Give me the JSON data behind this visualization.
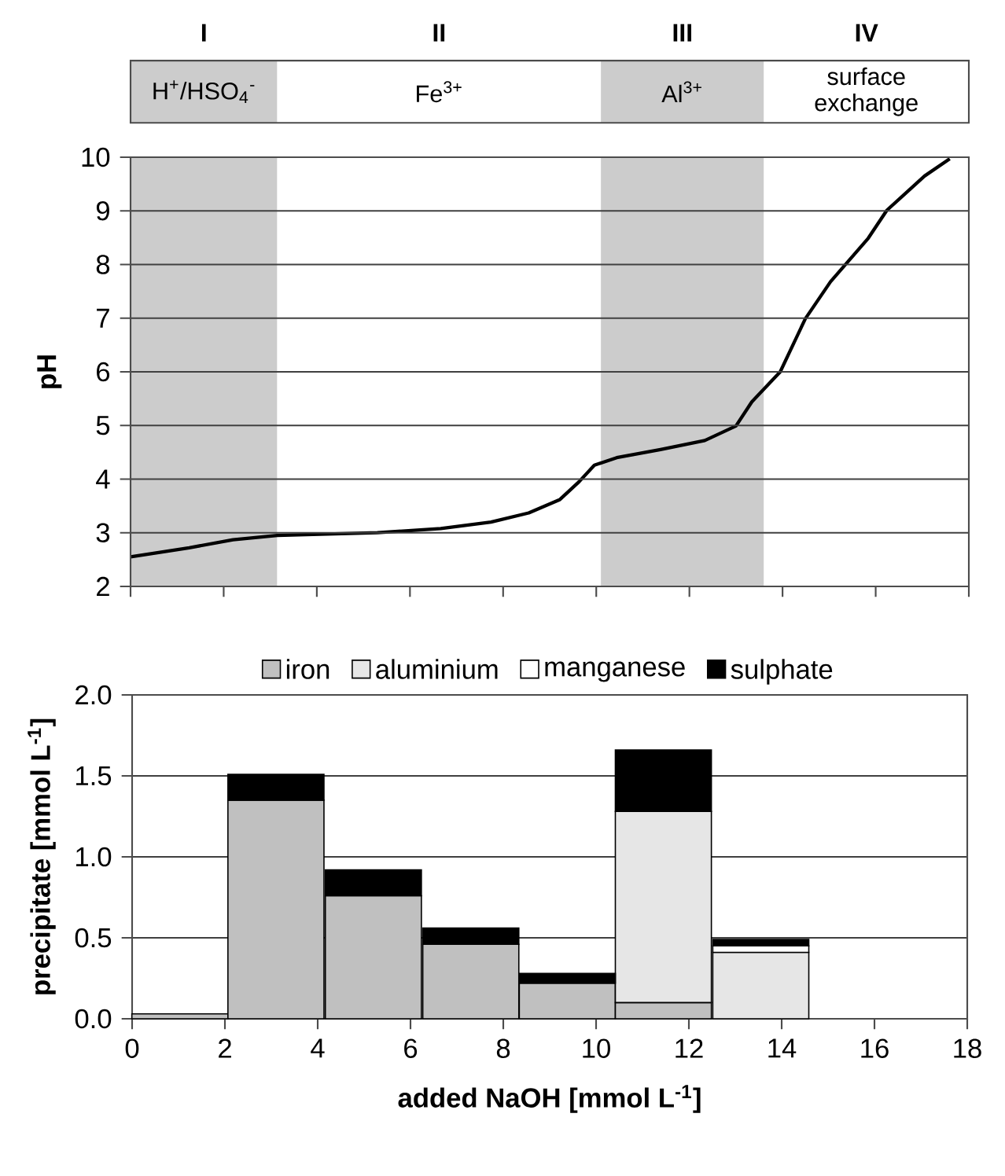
{
  "chart_data": [
    {
      "type": "line",
      "ylabel": "pH",
      "x": [
        0,
        1.26,
        2.2,
        3.15,
        5.3,
        6.66,
        7.74,
        8.55,
        9.22,
        9.63,
        9.96,
        10.44,
        11.38,
        12.33,
        13.0,
        13.34,
        13.95,
        14.49,
        15.03,
        15.84,
        16.24,
        17.05,
        17.59
      ],
      "values": [
        2.55,
        2.72,
        2.87,
        2.95,
        3.0,
        3.08,
        3.2,
        3.37,
        3.62,
        3.95,
        4.26,
        4.4,
        4.55,
        4.72,
        4.99,
        5.44,
        6.0,
        6.99,
        7.68,
        8.49,
        9.01,
        9.65,
        9.97
      ],
      "color": "#000000",
      "xlim": [
        0,
        18
      ],
      "xticks": [
        {
          "value": 0,
          "label": null
        },
        {
          "value": 2,
          "label": null
        },
        {
          "value": 4,
          "label": null
        },
        {
          "value": 6,
          "label": null
        },
        {
          "value": 8,
          "label": null
        },
        {
          "value": 10,
          "label": null
        },
        {
          "value": 12,
          "label": null
        },
        {
          "value": 14,
          "label": null
        },
        {
          "value": 16,
          "label": null
        },
        {
          "value": 18,
          "label": null
        }
      ],
      "ylim": [
        2,
        10
      ],
      "yticks": [
        2,
        3,
        4,
        5,
        6,
        7,
        8,
        9,
        10
      ],
      "grid": "y",
      "tick_labels": "y",
      "bands": [
        {
          "axis": "x",
          "from": 0,
          "to": 3.15,
          "label": "H$^{+}$/HSO$_{4}$$^{-}$",
          "color": "#cccccc"
        },
        {
          "axis": "x",
          "from": 3.15,
          "to": 10.1,
          "label": "Fe$^{3+}$",
          "color": "#ffffff"
        },
        {
          "axis": "x",
          "from": 10.1,
          "to": 13.6,
          "label": "Al$^{3+}$",
          "color": "#cccccc"
        },
        {
          "axis": "x",
          "from": 13.6,
          "to": 18,
          "label": "surface exchange",
          "color": "#ffffff"
        }
      ],
      "annotations": [
        "I",
        "II",
        "III",
        "IV"
      ]
    },
    {
      "type": "bar",
      "stacked": true,
      "x": [
        1.03,
        3.1,
        5.2,
        7.3,
        9.38,
        11.45,
        13.55
      ],
      "series": [
        {
          "name": "iron",
          "color": "#c0c0c0",
          "values": [
            0.03,
            1.35,
            0.76,
            0.46,
            0.22,
            0.1,
            0
          ]
        },
        {
          "name": "aluminium",
          "color": "#e6e6e6",
          "values": [
            0,
            0,
            0,
            0,
            0,
            1.18,
            0.41
          ]
        },
        {
          "name": "manganese",
          "color": "#ffffff",
          "values": [
            0,
            0,
            0,
            0,
            0,
            0,
            0.04
          ]
        },
        {
          "name": "sulphate",
          "color": "#000000",
          "values": [
            0,
            0.16,
            0.16,
            0.1,
            0.06,
            0.38,
            0.04
          ]
        }
      ],
      "xlim": [
        0,
        18
      ],
      "xticks": [
        0,
        2,
        4,
        6,
        8,
        10,
        12,
        14,
        16,
        18
      ],
      "ylim": [
        0,
        2
      ],
      "yticks": [
        {
          "value": 0,
          "label": "0.0"
        },
        {
          "value": 0.5,
          "label": "0.5"
        },
        {
          "value": 1,
          "label": "1.0"
        },
        {
          "value": 1.5,
          "label": "1.5"
        },
        {
          "value": 2,
          "label": "2.0"
        }
      ],
      "xlabel": "added NaOH [mmol L$^{-1}$]",
      "ylabel": "precipitate [mmol L$^{-1}$]",
      "grid": "y",
      "legend": "top"
    }
  ]
}
